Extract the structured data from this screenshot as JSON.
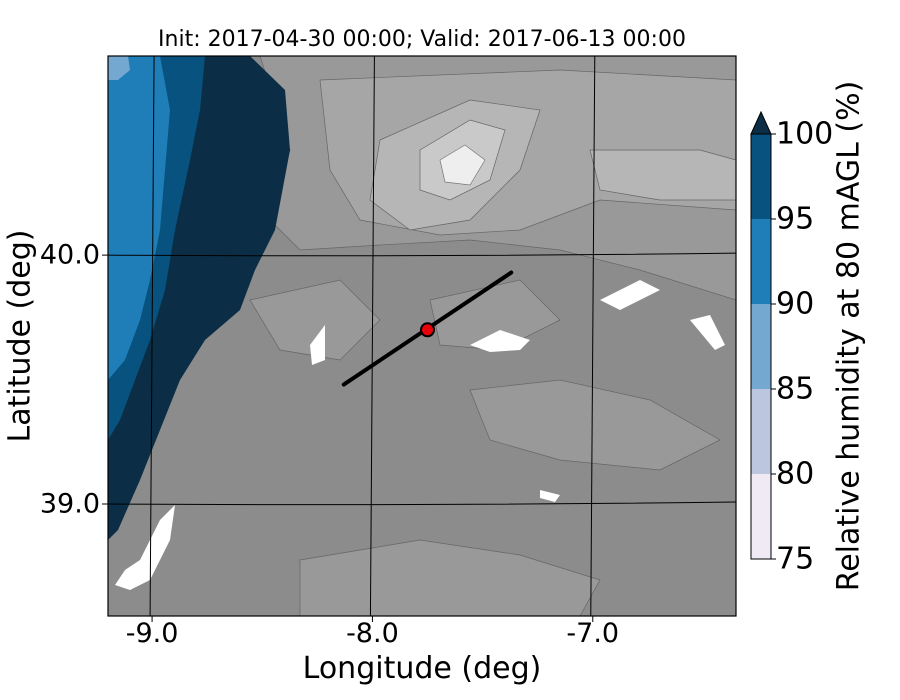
{
  "chart_data": {
    "type": "filled-contour map",
    "title": "Init: 2017-04-30 00:00; Valid: 2017-06-13 00:00",
    "xlabel": "Longitude (deg)",
    "ylabel": "Latitude (deg)",
    "x_ticks": [
      "-9.0",
      "-8.0",
      "-7.0"
    ],
    "x_tick_values": [
      -9.0,
      -8.0,
      -7.0
    ],
    "y_ticks": [
      "40.0",
      "39.0"
    ],
    "y_tick_values": [
      40.0,
      39.0
    ],
    "xlim": [
      -9.2,
      -6.35
    ],
    "ylim": [
      38.55,
      40.8
    ],
    "colorbar": {
      "label": "Relative humidity at 80 mAGL (%)",
      "levels": [
        75,
        80,
        85,
        90,
        95,
        100
      ],
      "tick_labels": [
        "75",
        "80",
        "85",
        "90",
        "95",
        "100"
      ],
      "colors": [
        "#efeaf4",
        "#bcc6df",
        "#74a8d0",
        "#1f7db8",
        "#08527f"
      ],
      "extend_color": "#0b2e46",
      "extend": "max"
    },
    "cross_section_line": {
      "start": [
        -8.13,
        39.48
      ],
      "end": [
        -7.37,
        39.93
      ]
    },
    "marker": {
      "lon": -7.75,
      "lat": 39.7,
      "color": "#e8000b"
    },
    "land_colors": [
      "#8c8c8c",
      "#9a9a9a",
      "#aaaaaa",
      "#bdbdbd",
      "#d2d2d2",
      "#eeeeee"
    ]
  }
}
